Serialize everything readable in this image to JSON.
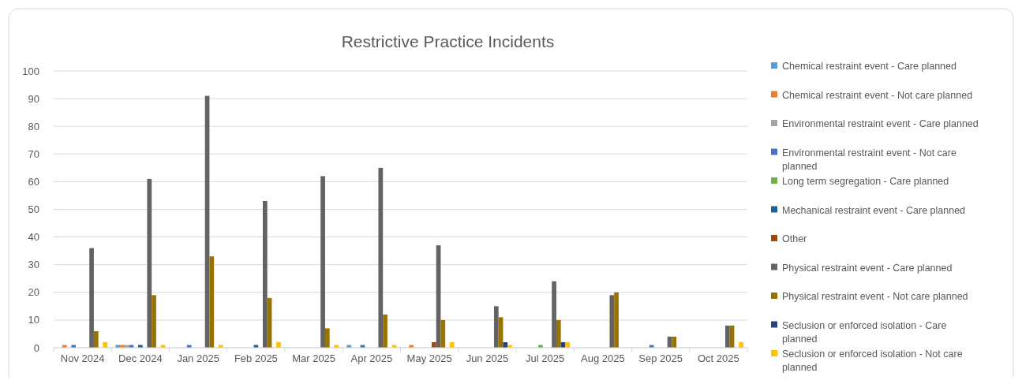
{
  "chart_data": {
    "type": "bar",
    "title": "Restrictive Practice Incidents",
    "categories": [
      "Nov 2024",
      "Dec 2024",
      "Jan 2025",
      "Feb 2025",
      "Mar 2025",
      "Apr 2025",
      "May 2025",
      "Jun 2025",
      "Jul 2025",
      "Aug 2025",
      "Sep 2025",
      "Oct 2025"
    ],
    "series": [
      {
        "name": "Chemical restraint event - Care planned",
        "color": "#5b9bd5",
        "values": [
          0,
          1,
          0,
          0,
          0,
          1,
          0,
          0,
          0,
          0,
          0,
          0
        ]
      },
      {
        "name": "Chemical restraint event - Not care planned",
        "color": "#ed7d31",
        "values": [
          1,
          1,
          0,
          0,
          0,
          0,
          1,
          0,
          0,
          0,
          0,
          0
        ]
      },
      {
        "name": "Environmental restraint event - Care planned",
        "color": "#a5a5a5",
        "values": [
          0,
          1,
          0,
          0,
          0,
          0,
          0,
          0,
          0,
          0,
          0,
          0
        ]
      },
      {
        "name": "Environmental restraint event - Not care planned",
        "color": "#4472c4",
        "values": [
          1,
          1,
          1,
          0,
          0,
          1,
          0,
          0,
          0,
          0,
          1,
          0
        ]
      },
      {
        "name": "Long term segregation - Care planned",
        "color": "#70ad47",
        "values": [
          0,
          0,
          0,
          0,
          0,
          0,
          0,
          0,
          1,
          0,
          0,
          0
        ]
      },
      {
        "name": "Mechanical restraint event - Care planned",
        "color": "#255e91",
        "values": [
          0,
          1,
          0,
          1,
          0,
          0,
          0,
          0,
          0,
          0,
          0,
          0
        ]
      },
      {
        "name": "Other",
        "color": "#9e480e",
        "values": [
          0,
          0,
          0,
          0,
          0,
          0,
          2,
          0,
          0,
          0,
          0,
          0
        ]
      },
      {
        "name": "Physical restraint event - Care planned",
        "color": "#636363",
        "values": [
          36,
          61,
          91,
          53,
          62,
          65,
          37,
          15,
          24,
          19,
          4,
          8
        ]
      },
      {
        "name": "Physical restraint event - Not care planned",
        "color": "#997300",
        "values": [
          6,
          19,
          33,
          18,
          7,
          12,
          10,
          11,
          10,
          20,
          4,
          8
        ]
      },
      {
        "name": "Seclusion or enforced isolation - Care planned",
        "color": "#264478",
        "values": [
          0,
          0,
          0,
          0,
          0,
          0,
          0,
          2,
          2,
          0,
          0,
          0
        ]
      },
      {
        "name": "Seclusion or enforced isolation - Not care planned",
        "color": "#ffc000",
        "values": [
          2,
          1,
          1,
          2,
          1,
          1,
          2,
          1,
          2,
          0,
          0,
          2
        ]
      }
    ],
    "ylim": [
      0,
      100
    ],
    "yticks": [
      0,
      10,
      20,
      30,
      40,
      50,
      60,
      70,
      80,
      90,
      100
    ],
    "grid": "y",
    "legend": "right"
  }
}
